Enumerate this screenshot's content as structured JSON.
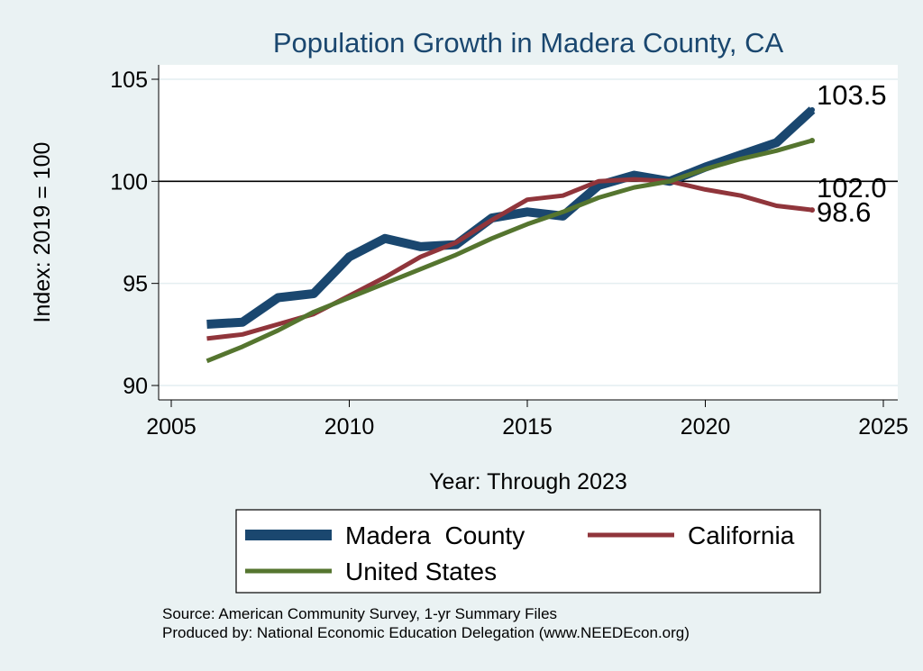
{
  "chart_data": {
    "type": "line",
    "title": "Population Growth in Madera County, CA",
    "xlabel": "Year: Through 2023",
    "ylabel": "Index: 2019 = 100",
    "xlim": [
      2005,
      2025
    ],
    "ylim": [
      90,
      105
    ],
    "xticks": [
      "2005",
      "2010",
      "2015",
      "2020",
      "2025"
    ],
    "yticks": [
      "90",
      "95",
      "100",
      "105"
    ],
    "reference_line": 100,
    "grid": true,
    "x": [
      2006,
      2007,
      2008,
      2009,
      2010,
      2011,
      2012,
      2013,
      2014,
      2015,
      2016,
      2017,
      2018,
      2019,
      2020,
      2021,
      2022,
      2023
    ],
    "series": [
      {
        "name": "Madera  County",
        "color": "#1a476f",
        "values": [
          93.0,
          93.1,
          94.3,
          94.5,
          96.3,
          97.2,
          96.8,
          96.9,
          98.2,
          98.5,
          98.3,
          99.8,
          100.3,
          100.0,
          100.7,
          101.3,
          101.9,
          103.5
        ],
        "end_label": "103.5"
      },
      {
        "name": "California",
        "color": "#90353b",
        "values": [
          92.3,
          92.5,
          93.0,
          93.5,
          94.4,
          95.3,
          96.3,
          97.0,
          98.1,
          99.1,
          99.3,
          100.0,
          100.1,
          100.0,
          99.6,
          99.3,
          98.8,
          98.6
        ],
        "end_label": "98.6"
      },
      {
        "name": "United States",
        "color": "#55752f",
        "values": [
          91.2,
          91.9,
          92.7,
          93.6,
          94.3,
          95.0,
          95.7,
          96.4,
          97.2,
          97.9,
          98.5,
          99.2,
          99.7,
          100.0,
          100.6,
          101.1,
          101.5,
          102.0
        ],
        "end_label": "102.0"
      }
    ],
    "legend_position": "bottom"
  },
  "footer": {
    "source": "Source: American Community Survey, 1-yr Summary Files",
    "produced": "Produced by: National Economic Education Delegation (www.NEEDEcon.org)"
  },
  "colors": {
    "background": "#eaf2f3",
    "plot_background": "#ffffff",
    "title": "#1a476f",
    "grid": "#e4eef0"
  }
}
